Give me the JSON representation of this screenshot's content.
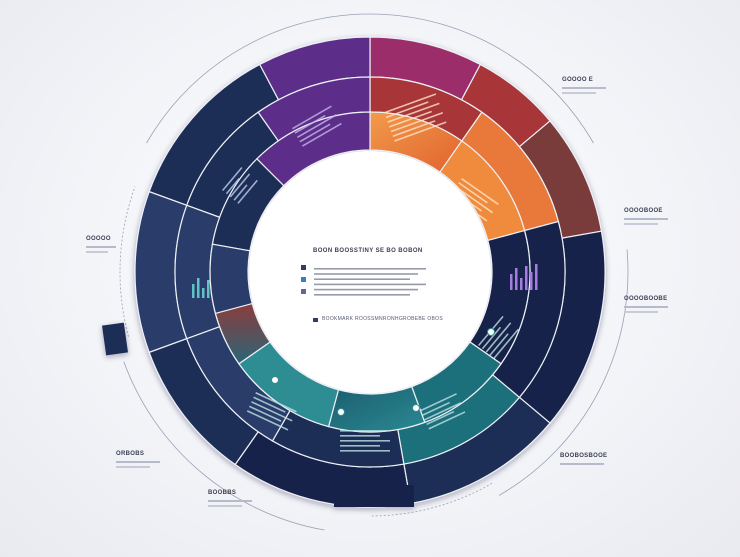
{
  "center": {
    "title": "BOON BOOSSTINY SE BO BOBON",
    "footer": "BOOKMARK ROOSSMNRONHGROBEBE OBOS"
  },
  "callouts": [
    {
      "id": "top-right",
      "title": "GOOOO E"
    },
    {
      "id": "right-1",
      "title": "OOOOBOOE"
    },
    {
      "id": "right-2",
      "title": "OOOOBOOBE"
    },
    {
      "id": "left",
      "title": "OOOOO"
    },
    {
      "id": "bottom-left-1",
      "title": "ORBOBS"
    },
    {
      "id": "bottom-left-2",
      "title": "BOOBBS"
    },
    {
      "id": "bottom-right",
      "title": "BOOBOSBOOE"
    }
  ],
  "colors": {
    "navy": "#1f2f57",
    "navy_dark": "#18244a",
    "purple": "#5b2e8a",
    "magenta": "#9b2f6b",
    "red": "#a83538",
    "orange": "#e8793a",
    "orange_light": "#f08a3e",
    "teal": "#1f6f7c",
    "teal_light": "#2d8c93",
    "slate": "#2c3e6a",
    "brown": "#7a3b3b"
  }
}
